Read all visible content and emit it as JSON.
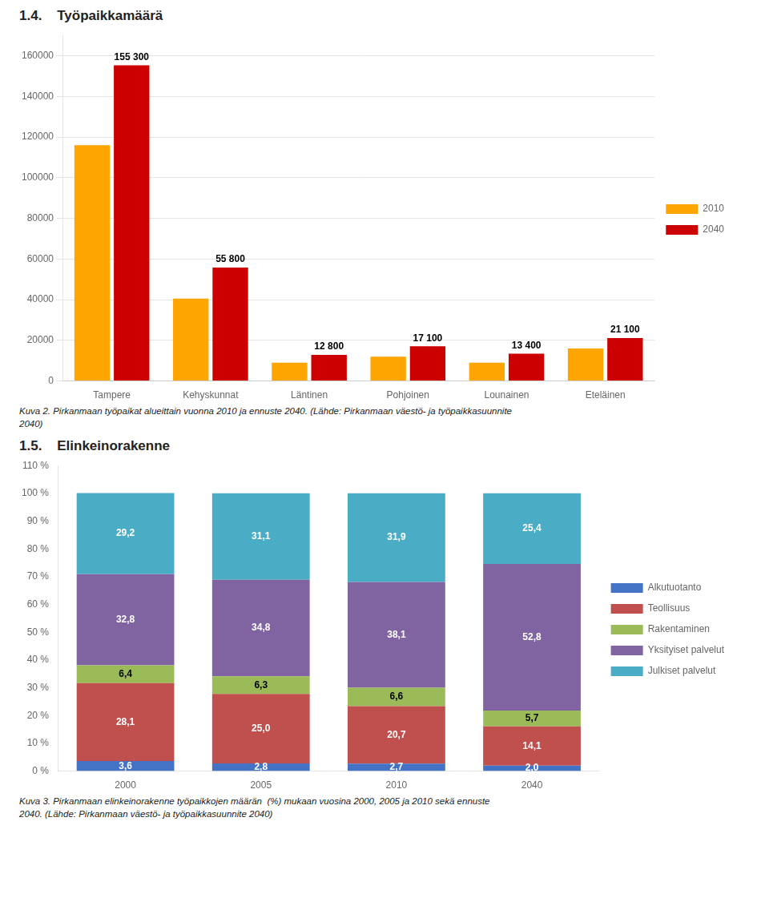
{
  "chart_data": [
    {
      "type": "bar",
      "title": "1.4.    Työpaikkamäärä",
      "categories": [
        "Tampere",
        "Kehyskunnat",
        "Läntinen",
        "Pohjoinen",
        "Lounainen",
        "Eteläinen"
      ],
      "series": [
        {
          "name": "2010",
          "color": "#FFA500",
          "values": [
            116000,
            40500,
            9000,
            12000,
            9000,
            16000
          ]
        },
        {
          "name": "2040",
          "color": "#CC0000",
          "values": [
            155300,
            55800,
            12800,
            17100,
            13400,
            21100
          ],
          "value_labels": [
            "155 300",
            "55 800",
            "12 800",
            "17 100",
            "13 400",
            "21 100"
          ],
          "data_labels": true
        }
      ],
      "ylim": [
        0,
        170000
      ],
      "yticks": [
        0,
        20000,
        40000,
        60000,
        80000,
        100000,
        120000,
        140000,
        160000
      ],
      "grid": true,
      "legend": "right",
      "caption": "Kuva 2. Pirkanmaan työpaikat alueittain vuonna 2010 ja ennuste 2040. (Lähde: Pirkanmaan väestö- ja työpaikkasuunnite\n2040)"
    },
    {
      "type": "bar",
      "title": "1.5.    Elinkeinorakenne",
      "categories": [
        "2000",
        "2005",
        "2010",
        "2040"
      ],
      "stacked": true,
      "data_labels": true,
      "series": [
        {
          "name": "Alkutuotanto",
          "color": "#4472C4",
          "values": [
            3.6,
            2.8,
            2.7,
            2.0
          ],
          "value_labels": [
            "3,6",
            "2,8",
            "2,7",
            "2,0"
          ]
        },
        {
          "name": "Teollisuus",
          "color": "#C0504D",
          "values": [
            28.1,
            25.0,
            20.7,
            14.1
          ],
          "value_labels": [
            "28,1",
            "25,0",
            "20,7",
            "14,1"
          ]
        },
        {
          "name": "Rakentaminen",
          "color": "#9BBB59",
          "values": [
            6.4,
            6.3,
            6.6,
            5.7
          ],
          "value_labels": [
            "6,4",
            "6,3",
            "6,6",
            "5,7"
          ]
        },
        {
          "name": "Yksityiset palvelut",
          "color": "#8064A2",
          "values": [
            32.8,
            34.8,
            38.1,
            52.8
          ],
          "value_labels": [
            "32,8",
            "34,8",
            "38,1",
            "52,8"
          ]
        },
        {
          "name": "Julkiset palvelut",
          "color": "#4BACC6",
          "values": [
            29.2,
            31.1,
            31.9,
            25.4
          ],
          "value_labels": [
            "29,2",
            "31,1",
            "31,9",
            "25,4"
          ]
        }
      ],
      "ylim": [
        0,
        110
      ],
      "yticks": [
        {
          "value": 0,
          "label": "0 %"
        },
        {
          "value": 10,
          "label": "10 %"
        },
        {
          "value": 20,
          "label": "20 %"
        },
        {
          "value": 30,
          "label": "30 %"
        },
        {
          "value": 40,
          "label": "40 %"
        },
        {
          "value": 50,
          "label": "50 %"
        },
        {
          "value": 60,
          "label": "60 %"
        },
        {
          "value": 70,
          "label": "70 %"
        },
        {
          "value": 80,
          "label": "80 %"
        },
        {
          "value": 90,
          "label": "90 %"
        },
        {
          "value": 100,
          "label": "100 %"
        },
        {
          "value": 110,
          "label": "110 %"
        }
      ],
      "grid": false,
      "legend": "right",
      "caption": "Kuva 3. Pirkanmaan elinkeinorakenne työpaikkojen määrän  (%) mukaan vuosina 2000, 2005 ja 2010 sekä ennuste\n2040. (Lähde: Pirkanmaan väestö- ja työpaikkasuunnite 2040)"
    }
  ]
}
